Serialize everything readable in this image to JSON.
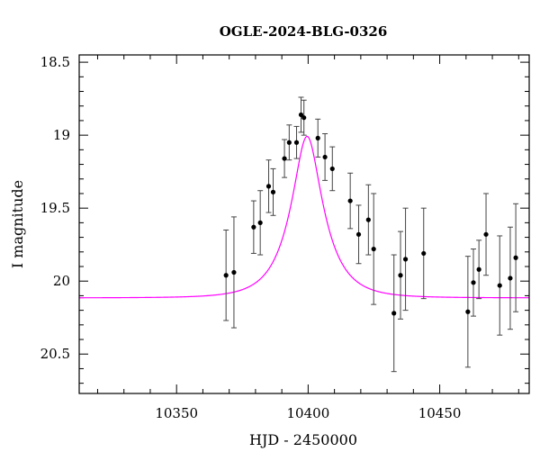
{
  "chart_data": {
    "type": "scatter",
    "title": "OGLE-2024-BLG-0326",
    "xlabel": "HJD - 2450000",
    "ylabel": "I magnitude",
    "xlim": [
      10313,
      10484
    ],
    "ylim": [
      20.77,
      18.45
    ],
    "y_inverted": true,
    "x_ticks": [
      10350,
      10400,
      10450
    ],
    "x_tick_labels": [
      "10350",
      "10400",
      "10450"
    ],
    "y_ticks": [
      18.5,
      19,
      19.5,
      20,
      20.5
    ],
    "y_tick_labels": [
      "18.5",
      "19",
      "19.5",
      "20",
      "20.5"
    ],
    "grid": false,
    "model_color": "#ff00ff",
    "point_color": "#000000",
    "model": {
      "name": "model",
      "t0": 10399.6,
      "tE": 12.0,
      "u0": 0.38,
      "baseline_mag": 20.115,
      "blend_fraction": 1.0
    },
    "series": [
      {
        "name": "data",
        "points": [
          {
            "x": 10368.8,
            "y": 19.96,
            "err": 0.31
          },
          {
            "x": 10371.8,
            "y": 19.94,
            "err": 0.38
          },
          {
            "x": 10379.3,
            "y": 19.63,
            "err": 0.18
          },
          {
            "x": 10381.8,
            "y": 19.6,
            "err": 0.22
          },
          {
            "x": 10385.0,
            "y": 19.35,
            "err": 0.18
          },
          {
            "x": 10386.7,
            "y": 19.39,
            "err": 0.16
          },
          {
            "x": 10391.0,
            "y": 19.16,
            "err": 0.13
          },
          {
            "x": 10392.8,
            "y": 19.05,
            "err": 0.12
          },
          {
            "x": 10395.6,
            "y": 19.05,
            "err": 0.11
          },
          {
            "x": 10397.3,
            "y": 18.86,
            "err": 0.12
          },
          {
            "x": 10398.4,
            "y": 18.88,
            "err": 0.12
          },
          {
            "x": 10403.7,
            "y": 19.02,
            "err": 0.13
          },
          {
            "x": 10406.4,
            "y": 19.15,
            "err": 0.16
          },
          {
            "x": 10409.2,
            "y": 19.23,
            "err": 0.15
          },
          {
            "x": 10416.0,
            "y": 19.45,
            "err": 0.19
          },
          {
            "x": 10419.2,
            "y": 19.68,
            "err": 0.2
          },
          {
            "x": 10422.9,
            "y": 19.58,
            "err": 0.24
          },
          {
            "x": 10424.9,
            "y": 19.78,
            "err": 0.38
          },
          {
            "x": 10432.6,
            "y": 20.22,
            "err": 0.4
          },
          {
            "x": 10435.1,
            "y": 19.96,
            "err": 0.3
          },
          {
            "x": 10437.0,
            "y": 19.85,
            "err": 0.35
          },
          {
            "x": 10443.9,
            "y": 19.81,
            "err": 0.31
          },
          {
            "x": 10460.7,
            "y": 20.21,
            "err": 0.38
          },
          {
            "x": 10462.8,
            "y": 20.01,
            "err": 0.23
          },
          {
            "x": 10464.9,
            "y": 19.92,
            "err": 0.2
          },
          {
            "x": 10467.6,
            "y": 19.68,
            "err": 0.28
          },
          {
            "x": 10472.8,
            "y": 20.03,
            "err": 0.34
          },
          {
            "x": 10476.8,
            "y": 19.98,
            "err": 0.35
          },
          {
            "x": 10478.9,
            "y": 19.84,
            "err": 0.37
          }
        ]
      }
    ]
  }
}
